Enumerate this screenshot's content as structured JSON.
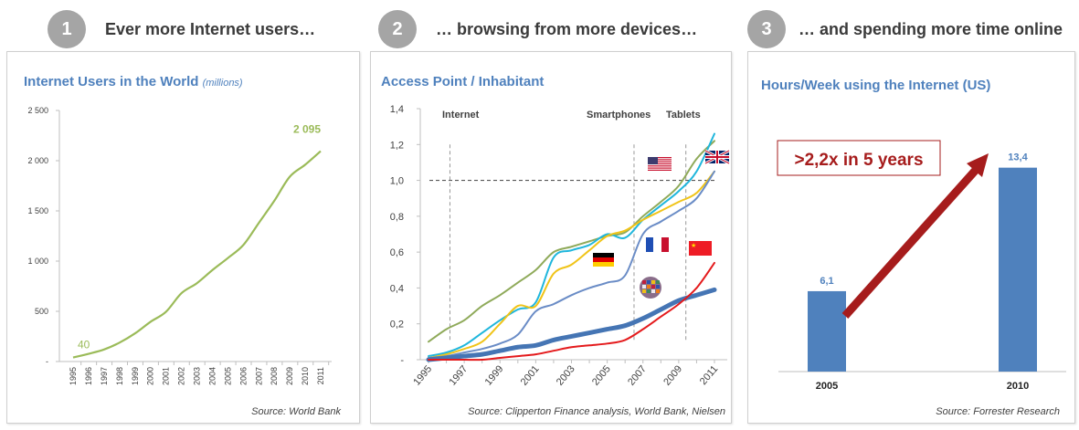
{
  "sections": [
    {
      "number": "1",
      "title": "Ever more Internet users…"
    },
    {
      "number": "2",
      "title": "… browsing from more devices…"
    },
    {
      "number": "3",
      "title": "… and spending more time online"
    }
  ],
  "colors": {
    "circle": "#a5a5a5",
    "title_blue": "#4f81bd",
    "users_line": "#9bbb59",
    "bar": "#4f81bd",
    "callout_red": "#a61c1c"
  },
  "chart_data": [
    {
      "type": "line",
      "title": "Internet Users in the World",
      "title_unit": "(millions)",
      "xlabel": "",
      "ylabel": "",
      "x": [
        1995,
        1996,
        1997,
        1998,
        1999,
        2000,
        2001,
        2002,
        2003,
        2004,
        2005,
        2006,
        2007,
        2008,
        2009,
        2010,
        2011
      ],
      "x_tick_labels": [
        "1995",
        "1996",
        "1997",
        "1998",
        "1999",
        "2000",
        "2001",
        "2002",
        "2003",
        "2004",
        "2005",
        "2006",
        "2007",
        "2008",
        "2009",
        "2010",
        "2011"
      ],
      "series": [
        {
          "name": "Internet users",
          "color": "#9bbb59",
          "values": [
            40,
            77,
            120,
            188,
            280,
            395,
            495,
            680,
            780,
            910,
            1030,
            1160,
            1380,
            1600,
            1840,
            1960,
            2095
          ]
        }
      ],
      "ylim": [
        0,
        2500
      ],
      "y_ticks": [
        0,
        500,
        1000,
        1500,
        2000,
        2500
      ],
      "y_tick_labels": [
        "-",
        "500",
        "1 000",
        "1 500",
        "2 000",
        "2 500"
      ],
      "data_labels": [
        {
          "x": 1995,
          "text": "40"
        },
        {
          "x": 2011,
          "text": "2 095"
        }
      ],
      "grid": false,
      "source": "Source: World Bank"
    },
    {
      "type": "line",
      "title": "Access Point / Inhabitant",
      "xlabel": "",
      "ylabel": "",
      "x": [
        1995,
        1996,
        1997,
        1998,
        1999,
        2000,
        2001,
        2002,
        2003,
        2004,
        2005,
        2006,
        2007,
        2008,
        2009,
        2010,
        2011
      ],
      "x_tick_labels": [
        "1995",
        "1997",
        "1999",
        "2001",
        "2003",
        "2005",
        "2007",
        "2009",
        "2011"
      ],
      "ylim": [
        0,
        1.4
      ],
      "y_ticks": [
        0,
        0.2,
        0.4,
        0.6,
        0.8,
        1.0,
        1.2,
        1.4
      ],
      "y_tick_labels": [
        "-",
        "0,2",
        "0,4",
        "0,6",
        "0,8",
        "1,0",
        "1,2",
        "1,4"
      ],
      "series": [
        {
          "name": "United Kingdom",
          "flag": "uk",
          "color": "#8faa5a",
          "width": 2,
          "values": [
            0.1,
            0.17,
            0.22,
            0.3,
            0.36,
            0.43,
            0.5,
            0.6,
            0.63,
            0.66,
            0.69,
            0.71,
            0.8,
            0.88,
            0.97,
            1.12,
            1.22
          ]
        },
        {
          "name": "United States",
          "flag": "us",
          "color": "#1fb6dc",
          "width": 2,
          "values": [
            0.02,
            0.04,
            0.08,
            0.15,
            0.22,
            0.28,
            0.32,
            0.57,
            0.61,
            0.64,
            0.7,
            0.68,
            0.78,
            0.86,
            0.94,
            1.05,
            1.26
          ]
        },
        {
          "name": "Germany",
          "flag": "de",
          "color": "#f0c419",
          "width": 2,
          "values": [
            0.01,
            0.03,
            0.06,
            0.1,
            0.2,
            0.3,
            0.3,
            0.48,
            0.53,
            0.61,
            0.69,
            0.72,
            0.78,
            0.83,
            0.88,
            0.93,
            1.05
          ]
        },
        {
          "name": "France",
          "flag": "fr",
          "color": "#6a8cc6",
          "width": 2,
          "values": [
            0.01,
            0.02,
            0.04,
            0.06,
            0.09,
            0.14,
            0.27,
            0.31,
            0.36,
            0.4,
            0.43,
            0.47,
            0.7,
            0.77,
            0.83,
            0.9,
            1.05
          ]
        },
        {
          "name": "World",
          "flag": "world",
          "color": "#4575b4",
          "width": 5,
          "values": [
            0.0,
            0.01,
            0.02,
            0.03,
            0.05,
            0.07,
            0.08,
            0.11,
            0.13,
            0.15,
            0.17,
            0.19,
            0.23,
            0.28,
            0.33,
            0.36,
            0.39
          ]
        },
        {
          "name": "China",
          "flag": "cn",
          "color": "#e41a1c",
          "width": 2,
          "values": [
            0.0,
            0.0,
            0.0,
            0.0,
            0.01,
            0.02,
            0.03,
            0.05,
            0.07,
            0.08,
            0.09,
            0.11,
            0.17,
            0.24,
            0.31,
            0.4,
            0.54
          ]
        }
      ],
      "reference_lines": {
        "horizontal": [
          {
            "y": 1.0,
            "style": "dashed"
          }
        ],
        "vertical": [
          {
            "x": 1996.2,
            "label": "Internet"
          },
          {
            "x": 2006.5,
            "label": "Smartphones"
          },
          {
            "x": 2009.4,
            "label": "Tablets"
          }
        ]
      },
      "grid": false,
      "source": "Source: Clipperton Finance analysis, World Bank, Nielsen"
    },
    {
      "type": "bar",
      "title": "Hours/Week using the Internet (US)",
      "categories": [
        "2005",
        "2010"
      ],
      "values": [
        6.1,
        13.4
      ],
      "value_labels": [
        "6,1",
        "13,4"
      ],
      "ylim": [
        0,
        15
      ],
      "color": "#4f81bd",
      "annotation": ">2,2x in 5 years",
      "grid": false,
      "source": "Source: Forrester Research"
    }
  ]
}
